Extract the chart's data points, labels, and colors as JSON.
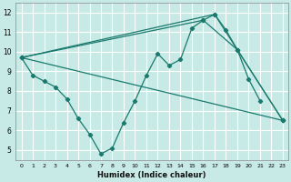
{
  "title": "",
  "xlabel": "Humidex (Indice chaleur)",
  "background_color": "#c8eae6",
  "grid_color": "#ffffff",
  "line_color": "#1a7a6e",
  "xlim": [
    -0.5,
    23.5
  ],
  "ylim": [
    4.5,
    12.5
  ],
  "xticks": [
    0,
    1,
    2,
    3,
    4,
    5,
    6,
    7,
    8,
    9,
    10,
    11,
    12,
    13,
    14,
    15,
    16,
    17,
    18,
    19,
    20,
    21,
    22,
    23
  ],
  "yticks": [
    5,
    6,
    7,
    8,
    9,
    10,
    11,
    12
  ],
  "series": [
    {
      "x": [
        0,
        1,
        2,
        3,
        4,
        5,
        6,
        7,
        8,
        9,
        10,
        11,
        12,
        13,
        14,
        15,
        16,
        17,
        18,
        19,
        20,
        21
      ],
      "y": [
        9.7,
        8.8,
        8.5,
        8.2,
        7.6,
        6.6,
        5.8,
        4.8,
        5.1,
        6.4,
        7.5,
        8.8,
        9.9,
        9.3,
        9.6,
        11.2,
        11.6,
        11.9,
        11.1,
        10.1,
        8.6,
        7.5
      ]
    },
    {
      "x": [
        0,
        23
      ],
      "y": [
        9.7,
        6.5
      ]
    },
    {
      "x": [
        0,
        17,
        23
      ],
      "y": [
        9.7,
        11.9,
        6.5
      ]
    },
    {
      "x": [
        0,
        16,
        19,
        23
      ],
      "y": [
        9.7,
        11.6,
        10.1,
        6.5
      ]
    }
  ]
}
